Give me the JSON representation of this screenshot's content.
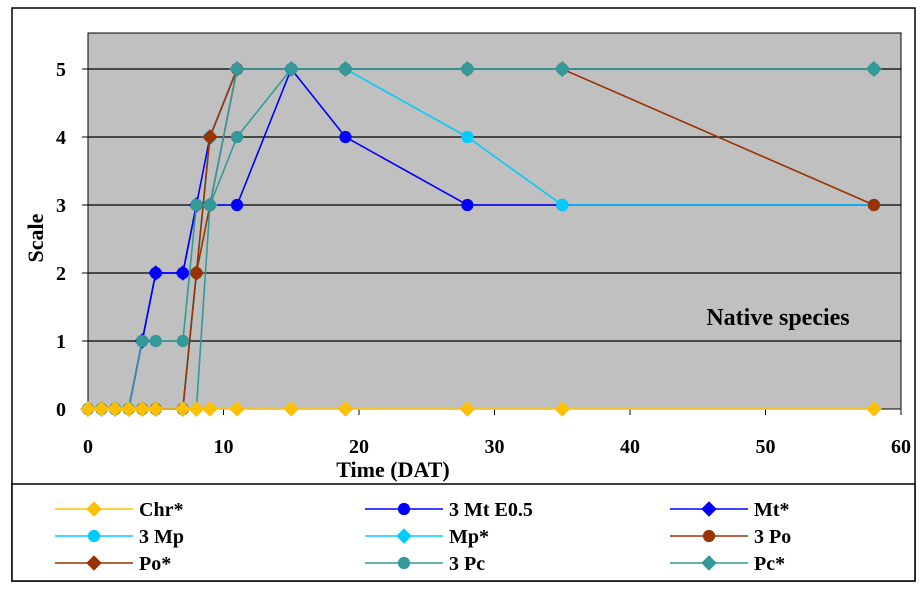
{
  "chart_data": {
    "type": "line",
    "title": "",
    "xlabel": "Time (DAT)",
    "ylabel": "Scale",
    "xlim": [
      0,
      60
    ],
    "ylim": [
      0,
      5
    ],
    "xticks": [
      0,
      10,
      20,
      30,
      40,
      50,
      60
    ],
    "yticks": [
      0,
      1,
      2,
      3,
      4,
      5
    ],
    "grid": "horizontal",
    "plot_background": "#c0c0c0",
    "annotation": "Native species",
    "legend_position": "bottom",
    "series": [
      {
        "name": "Chr*",
        "color": "#ffc000",
        "marker": "diamond",
        "x": [
          0,
          1,
          2,
          3,
          4,
          5,
          7,
          8,
          9,
          11,
          15,
          19,
          28,
          35,
          58
        ],
        "y": [
          0,
          0,
          0,
          0,
          0,
          0,
          0,
          0,
          0,
          0,
          0,
          0,
          0,
          0,
          0
        ]
      },
      {
        "name": "3 Mt E0.5",
        "color": "#0000ff",
        "marker": "circle",
        "x": [
          0,
          1,
          2,
          3,
          4,
          5,
          7,
          8,
          9,
          11,
          15,
          19,
          28,
          35,
          58
        ],
        "y": [
          0,
          0,
          0,
          0,
          1,
          2,
          2,
          3,
          3,
          3,
          5,
          4,
          3,
          3,
          3
        ]
      },
      {
        "name": "Mt*",
        "color": "#0000ff",
        "marker": "diamond",
        "x": [
          0,
          1,
          2,
          3,
          4,
          5,
          7,
          8,
          9,
          11,
          15,
          19,
          28,
          35,
          58
        ],
        "y": [
          0,
          0,
          0,
          0,
          1,
          2,
          2,
          3,
          4,
          5,
          5,
          5,
          5,
          5,
          5
        ]
      },
      {
        "name": "3 Mp",
        "color": "#00ccff",
        "marker": "circle",
        "x": [
          0,
          1,
          2,
          3,
          4,
          5,
          7,
          8,
          9,
          11,
          15,
          19,
          28,
          35,
          58
        ],
        "y": [
          0,
          0,
          0,
          0,
          0,
          0,
          0,
          2,
          4,
          5,
          5,
          5,
          4,
          3,
          3
        ]
      },
      {
        "name": "Mp*",
        "color": "#00ccff",
        "marker": "diamond",
        "x": [
          0,
          1,
          2,
          3,
          4,
          5,
          7,
          8,
          9,
          11,
          15,
          19,
          28,
          35,
          58
        ],
        "y": [
          0,
          0,
          0,
          0,
          0,
          0,
          0,
          2,
          4,
          5,
          5,
          5,
          5,
          5,
          5
        ]
      },
      {
        "name": "3 Po",
        "color": "#993300",
        "marker": "circle",
        "x": [
          0,
          1,
          2,
          3,
          4,
          5,
          7,
          8,
          9,
          11,
          15,
          19,
          28,
          35,
          58
        ],
        "y": [
          0,
          0,
          0,
          0,
          0,
          0,
          0,
          2,
          3,
          5,
          5,
          5,
          5,
          5,
          3
        ]
      },
      {
        "name": "Po*",
        "color": "#993300",
        "marker": "diamond",
        "x": [
          0,
          1,
          2,
          3,
          4,
          5,
          7,
          8,
          9,
          11,
          15,
          19,
          28,
          35,
          58
        ],
        "y": [
          0,
          0,
          0,
          0,
          0,
          0,
          0,
          2,
          4,
          5,
          5,
          5,
          5,
          5,
          5
        ]
      },
      {
        "name": "3 Pc",
        "color": "#339999",
        "marker": "circle",
        "x": [
          0,
          1,
          2,
          3,
          4,
          5,
          7,
          8,
          9,
          11,
          15,
          19,
          28,
          35,
          58
        ],
        "y": [
          0,
          0,
          0,
          0,
          1,
          1,
          1,
          3,
          3,
          4,
          5,
          5,
          5,
          5,
          5
        ]
      },
      {
        "name": "Pc*",
        "color": "#339999",
        "marker": "diamond",
        "x": [
          0,
          1,
          2,
          3,
          4,
          5,
          7,
          8,
          9,
          11,
          15,
          19,
          28,
          35,
          58
        ],
        "y": [
          0,
          0,
          0,
          0,
          0,
          0,
          0,
          0,
          3,
          5,
          5,
          5,
          5,
          5,
          5
        ]
      }
    ]
  }
}
